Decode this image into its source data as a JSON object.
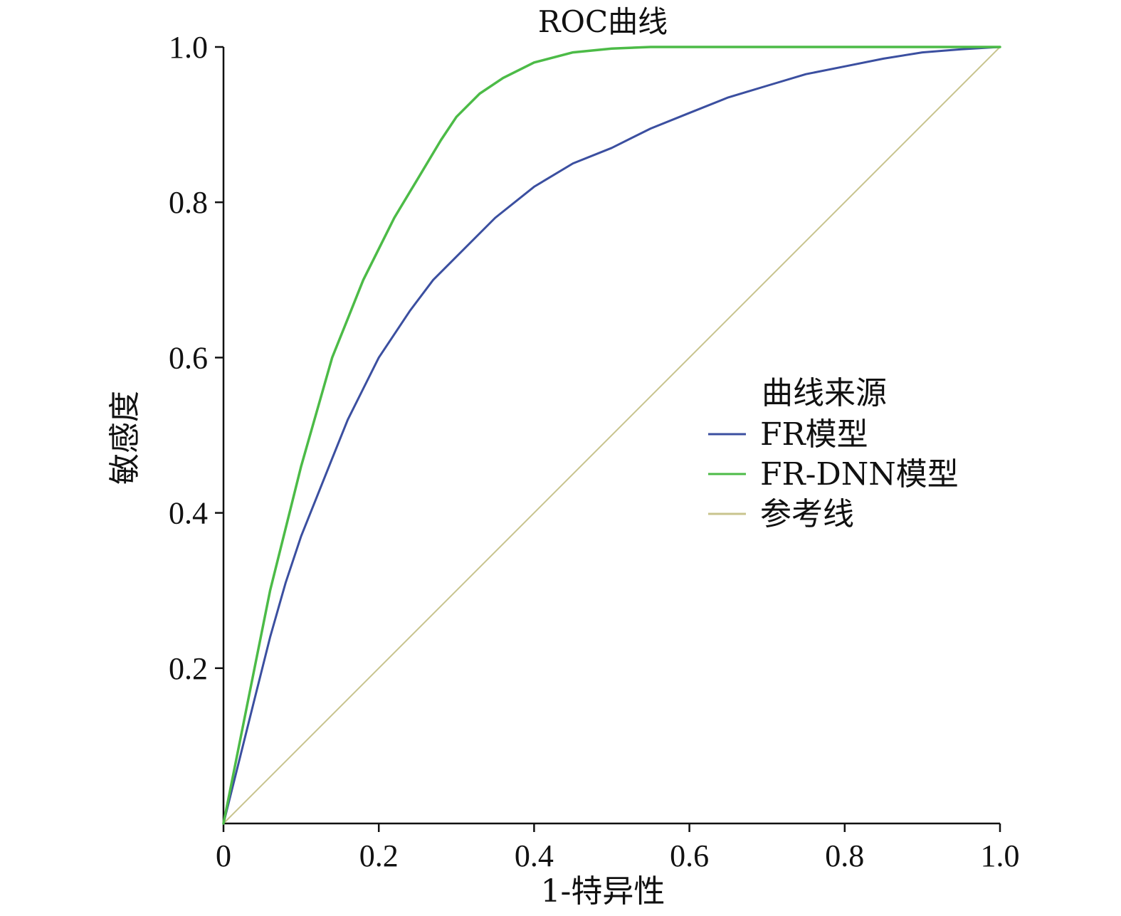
{
  "chart_data": {
    "type": "line",
    "title": "ROC曲线",
    "xlabel": "1-特异性",
    "ylabel": "敏感度",
    "xlim": [
      0,
      1.0
    ],
    "ylim": [
      0,
      1.0
    ],
    "x_ticks": [
      "0",
      "0.2",
      "0.4",
      "0.6",
      "0.8",
      "1.0"
    ],
    "y_ticks": [
      "0.2",
      "0.4",
      "0.6",
      "0.8",
      "1.0"
    ],
    "grid": false,
    "legend_title": "曲线来源",
    "legend_position": "right",
    "series": [
      {
        "name": "FR模型",
        "color": "#3b4fa0",
        "x": [
          0,
          0.02,
          0.04,
          0.06,
          0.08,
          0.1,
          0.12,
          0.14,
          0.16,
          0.18,
          0.2,
          0.22,
          0.24,
          0.27,
          0.3,
          0.35,
          0.4,
          0.45,
          0.5,
          0.55,
          0.6,
          0.65,
          0.7,
          0.75,
          0.8,
          0.85,
          0.9,
          0.95,
          1.0
        ],
        "y": [
          0,
          0.08,
          0.16,
          0.24,
          0.31,
          0.37,
          0.42,
          0.47,
          0.52,
          0.56,
          0.6,
          0.63,
          0.66,
          0.7,
          0.73,
          0.78,
          0.82,
          0.85,
          0.87,
          0.895,
          0.915,
          0.935,
          0.95,
          0.965,
          0.975,
          0.985,
          0.993,
          0.997,
          1.0
        ]
      },
      {
        "name": "FR-DNN模型",
        "color": "#4cbb47",
        "x": [
          0,
          0.02,
          0.04,
          0.06,
          0.08,
          0.1,
          0.12,
          0.14,
          0.16,
          0.18,
          0.2,
          0.22,
          0.25,
          0.28,
          0.3,
          0.33,
          0.36,
          0.4,
          0.45,
          0.5,
          0.55,
          0.6,
          0.7,
          0.8,
          0.9,
          1.0
        ],
        "y": [
          0,
          0.1,
          0.2,
          0.3,
          0.38,
          0.46,
          0.53,
          0.6,
          0.65,
          0.7,
          0.74,
          0.78,
          0.83,
          0.88,
          0.91,
          0.94,
          0.96,
          0.98,
          0.993,
          0.998,
          1.0,
          1.0,
          1.0,
          1.0,
          1.0,
          1.0
        ]
      },
      {
        "name": "参考线",
        "color": "#c8c48e",
        "x": [
          0,
          1.0
        ],
        "y": [
          0,
          1.0
        ]
      }
    ]
  }
}
